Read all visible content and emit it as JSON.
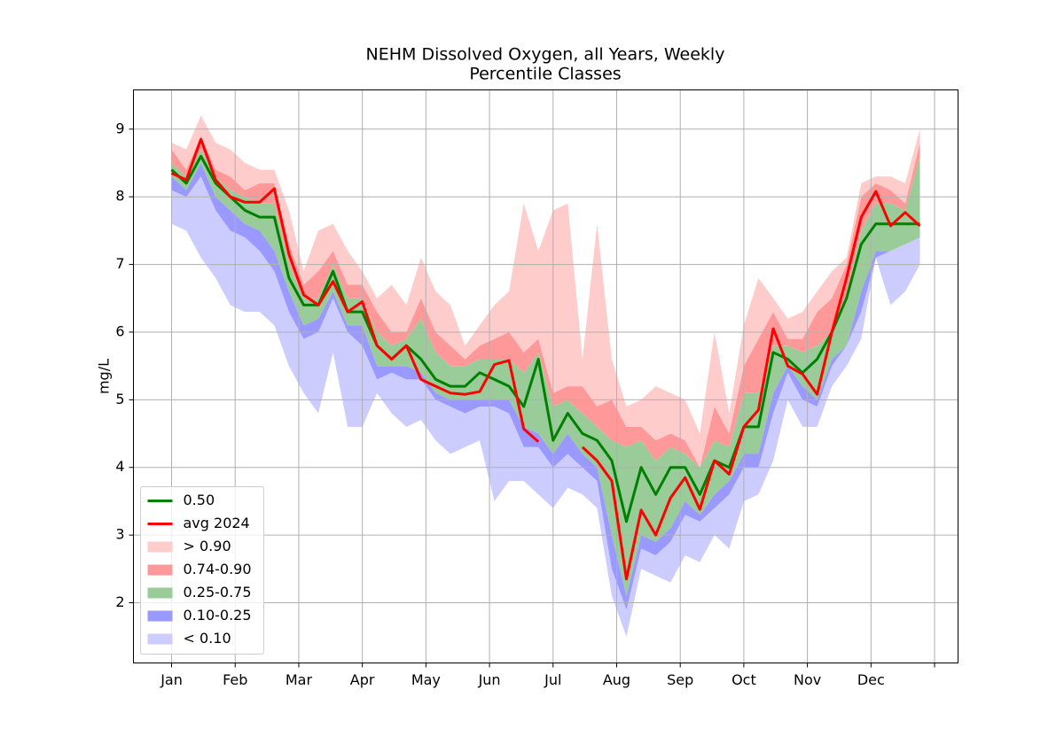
{
  "chart_data": {
    "type": "percentile-band",
    "title": "NEHM Dissolved Oxygen, all Years, Weekly",
    "subtitle": "Percentile Classes",
    "ylabel": "mg/L",
    "x": [
      0,
      1,
      2,
      3,
      4,
      5,
      6,
      7,
      8,
      9,
      10,
      11,
      12,
      13,
      14,
      15,
      16,
      17,
      18,
      19,
      20,
      21,
      22,
      23,
      24,
      25,
      26,
      27,
      28,
      29,
      30,
      31,
      32,
      33,
      34,
      35,
      36,
      37,
      38,
      39,
      40,
      41,
      42,
      43,
      44,
      45,
      46,
      47,
      48,
      49,
      50,
      51
    ],
    "xlim": [
      -2.6,
      53.6
    ],
    "xticks": [
      {
        "value": 0,
        "label": "Jan"
      },
      {
        "value": 4.333,
        "label": "Feb"
      },
      {
        "value": 8.667,
        "label": "Mar"
      },
      {
        "value": 13,
        "label": "Apr"
      },
      {
        "value": 17.333,
        "label": "May"
      },
      {
        "value": 21.667,
        "label": "Jun"
      },
      {
        "value": 26,
        "label": "Jul"
      },
      {
        "value": 30.333,
        "label": "Aug"
      },
      {
        "value": 34.667,
        "label": "Sep"
      },
      {
        "value": 39,
        "label": "Oct"
      },
      {
        "value": 43.333,
        "label": "Nov"
      },
      {
        "value": 47.667,
        "label": "Dec"
      },
      {
        "value": 52,
        "label": null
      }
    ],
    "ylim": [
      1.11,
      9.58
    ],
    "yticks": [
      2,
      3,
      4,
      5,
      6,
      7,
      8,
      9
    ],
    "grid": true,
    "legend": "lower left",
    "series": [
      {
        "name": "0.50",
        "color": "#008000",
        "values": [
          8.4,
          8.2,
          8.6,
          8.2,
          8.0,
          7.8,
          7.7,
          7.7,
          6.8,
          6.4,
          6.4,
          6.9,
          6.3,
          6.3,
          5.8,
          5.6,
          5.8,
          5.6,
          5.3,
          5.2,
          5.2,
          5.4,
          5.3,
          5.2,
          4.9,
          5.6,
          4.4,
          4.8,
          4.5,
          4.4,
          4.1,
          3.2,
          4.0,
          3.6,
          4.0,
          4.0,
          3.6,
          4.1,
          4.0,
          4.6,
          4.6,
          5.7,
          5.6,
          5.4,
          5.6,
          6.0,
          6.5,
          7.3,
          7.6,
          7.6,
          7.6,
          7.6
        ]
      },
      {
        "name": "avg 2024",
        "color": "#ff0000",
        "values": [
          8.35,
          8.25,
          8.85,
          8.25,
          8.0,
          7.92,
          7.92,
          8.12,
          7.15,
          6.55,
          6.4,
          6.75,
          6.3,
          6.45,
          5.8,
          5.6,
          5.8,
          5.3,
          5.2,
          5.1,
          5.08,
          5.12,
          5.52,
          5.58,
          4.57,
          4.38,
          null,
          null,
          4.3,
          4.1,
          3.8,
          2.35,
          3.37,
          3.0,
          3.55,
          3.85,
          3.38,
          4.1,
          3.9,
          4.6,
          4.85,
          6.05,
          5.5,
          5.38,
          5.08,
          6.0,
          6.8,
          7.7,
          8.08,
          7.57,
          7.77,
          7.57
        ]
      }
    ],
    "bands": [
      {
        "name": "> 0.90",
        "color": "#ffcccc",
        "lower": [
          8.7,
          8.4,
          8.9,
          8.4,
          8.3,
          8.1,
          8.2,
          8.2,
          7.3,
          6.7,
          6.9,
          7.2,
          6.7,
          6.7,
          6.3,
          6.0,
          6.0,
          6.5,
          6.0,
          5.8,
          5.6,
          5.8,
          5.9,
          6.0,
          5.7,
          5.9,
          5.1,
          5.2,
          5.2,
          4.9,
          5.0,
          4.6,
          4.6,
          4.4,
          4.5,
          4.4,
          4.0,
          4.9,
          4.5,
          5.5,
          5.9,
          6.3,
          5.9,
          5.9,
          6.3,
          6.5,
          7.0,
          8.0,
          8.2,
          8.1,
          7.9,
          8.8
        ],
        "upper": [
          8.8,
          8.7,
          9.2,
          8.8,
          8.7,
          8.5,
          8.4,
          8.4,
          7.8,
          6.9,
          7.5,
          7.6,
          7.2,
          6.9,
          6.5,
          6.7,
          6.4,
          7.1,
          6.6,
          6.4,
          5.8,
          6.1,
          6.4,
          6.6,
          7.9,
          7.2,
          7.8,
          7.9,
          5.6,
          7.6,
          5.6,
          4.9,
          5.0,
          5.2,
          5.1,
          5.0,
          4.5,
          6.0,
          4.8,
          6.1,
          6.8,
          6.5,
          6.2,
          6.3,
          6.6,
          6.9,
          7.1,
          8.2,
          8.3,
          8.3,
          8.2,
          9.0
        ]
      },
      {
        "name": "0.74-0.90",
        "color": "#ff9999",
        "lower": [
          8.5,
          8.3,
          8.7,
          8.3,
          8.1,
          8.0,
          7.9,
          7.9,
          7.0,
          6.5,
          6.5,
          7.0,
          6.5,
          6.5,
          6.0,
          5.8,
          5.9,
          6.2,
          5.7,
          5.5,
          5.5,
          5.6,
          5.6,
          5.6,
          5.4,
          5.7,
          4.9,
          5.0,
          4.8,
          4.6,
          4.4,
          4.3,
          4.4,
          4.1,
          4.3,
          4.2,
          4.0,
          4.4,
          4.3,
          5.1,
          5.1,
          5.8,
          5.8,
          5.7,
          5.8,
          6.0,
          6.5,
          7.5,
          7.9,
          7.9,
          7.8,
          8.6
        ],
        "upper": [
          8.7,
          8.4,
          8.9,
          8.4,
          8.3,
          8.1,
          8.2,
          8.2,
          7.3,
          6.7,
          6.9,
          7.2,
          6.7,
          6.7,
          6.3,
          6.0,
          6.0,
          6.5,
          6.0,
          5.8,
          5.6,
          5.8,
          5.9,
          6.0,
          5.7,
          5.9,
          5.1,
          5.2,
          5.2,
          4.9,
          5.0,
          4.6,
          4.6,
          4.4,
          4.5,
          4.4,
          4.0,
          4.9,
          4.5,
          5.5,
          5.9,
          6.3,
          5.9,
          5.9,
          6.3,
          6.5,
          7.0,
          8.0,
          8.2,
          8.1,
          7.9,
          8.8
        ]
      },
      {
        "name": "0.25-0.75",
        "color": "#99cc99",
        "lower": [
          8.3,
          8.1,
          8.5,
          8.0,
          7.8,
          7.6,
          7.5,
          7.2,
          6.6,
          6.1,
          6.2,
          6.6,
          6.1,
          6.1,
          5.5,
          5.5,
          5.5,
          5.4,
          5.1,
          5.0,
          5.0,
          5.0,
          5.0,
          5.0,
          4.6,
          4.5,
          4.2,
          4.5,
          4.2,
          4.0,
          3.0,
          2.1,
          3.0,
          2.9,
          3.1,
          3.5,
          3.3,
          3.6,
          3.8,
          4.2,
          4.2,
          5.1,
          5.5,
          5.2,
          5.0,
          5.6,
          5.8,
          6.6,
          7.2,
          7.2,
          7.3,
          7.4
        ],
        "upper": [
          8.5,
          8.3,
          8.7,
          8.3,
          8.1,
          8.0,
          7.9,
          7.9,
          7.0,
          6.5,
          6.5,
          7.0,
          6.5,
          6.5,
          6.0,
          5.8,
          5.9,
          6.2,
          5.7,
          5.5,
          5.5,
          5.6,
          5.6,
          5.6,
          5.4,
          5.7,
          4.9,
          5.0,
          4.8,
          4.6,
          4.4,
          4.3,
          4.4,
          4.1,
          4.3,
          4.2,
          4.0,
          4.4,
          4.3,
          5.1,
          5.1,
          5.8,
          5.8,
          5.7,
          5.8,
          6.0,
          6.5,
          7.5,
          7.9,
          7.9,
          7.8,
          8.6
        ]
      },
      {
        "name": "0.10-0.25",
        "color": "#9999ff",
        "lower": [
          8.1,
          8.0,
          8.3,
          7.8,
          7.5,
          7.4,
          7.2,
          6.9,
          6.3,
          5.9,
          6.0,
          6.5,
          6.0,
          5.8,
          5.3,
          5.4,
          5.3,
          5.3,
          5.0,
          4.9,
          4.8,
          4.9,
          4.9,
          4.8,
          4.3,
          4.3,
          4.0,
          4.2,
          4.0,
          3.8,
          2.5,
          1.9,
          2.8,
          2.7,
          2.9,
          3.3,
          3.2,
          3.4,
          3.6,
          4.0,
          4.0,
          4.8,
          5.4,
          5.0,
          4.9,
          5.5,
          5.8,
          6.3,
          7.1,
          7.2,
          7.3,
          7.4
        ],
        "upper": [
          8.3,
          8.1,
          8.5,
          8.0,
          7.8,
          7.6,
          7.5,
          7.2,
          6.6,
          6.1,
          6.2,
          6.6,
          6.1,
          6.1,
          5.5,
          5.5,
          5.5,
          5.4,
          5.1,
          5.0,
          5.0,
          5.0,
          5.0,
          5.0,
          4.6,
          4.5,
          4.2,
          4.5,
          4.2,
          4.0,
          3.0,
          2.1,
          3.0,
          2.9,
          3.1,
          3.5,
          3.3,
          3.6,
          3.8,
          4.2,
          4.2,
          5.1,
          5.5,
          5.2,
          5.0,
          5.6,
          5.8,
          6.6,
          7.2,
          7.2,
          7.3,
          7.4
        ]
      },
      {
        "name": "< 0.10",
        "color": "#ccccff",
        "lower": [
          7.6,
          7.5,
          7.1,
          6.8,
          6.4,
          6.3,
          6.3,
          6.1,
          5.5,
          5.1,
          4.8,
          5.7,
          4.6,
          4.6,
          5.1,
          4.8,
          4.6,
          4.7,
          4.4,
          4.2,
          4.3,
          4.4,
          3.5,
          3.8,
          3.8,
          3.6,
          3.4,
          3.7,
          3.6,
          3.4,
          2.1,
          1.5,
          2.5,
          2.4,
          2.3,
          2.7,
          2.6,
          3.0,
          2.8,
          3.5,
          3.6,
          4.1,
          5.0,
          4.6,
          4.6,
          5.2,
          5.5,
          5.9,
          7.1,
          6.4,
          6.6,
          7.0
        ],
        "upper": [
          8.1,
          8.0,
          8.3,
          7.8,
          7.5,
          7.4,
          7.2,
          6.9,
          6.3,
          5.9,
          6.0,
          6.5,
          6.0,
          5.8,
          5.3,
          5.4,
          5.3,
          5.3,
          5.0,
          4.9,
          4.8,
          4.9,
          4.9,
          4.8,
          4.3,
          4.3,
          4.0,
          4.2,
          4.0,
          3.8,
          2.5,
          1.9,
          2.8,
          2.7,
          2.9,
          3.3,
          3.2,
          3.4,
          3.6,
          4.0,
          4.0,
          4.8,
          5.4,
          5.0,
          4.9,
          5.5,
          5.8,
          6.3,
          7.1,
          7.2,
          7.3,
          7.4
        ]
      }
    ]
  }
}
